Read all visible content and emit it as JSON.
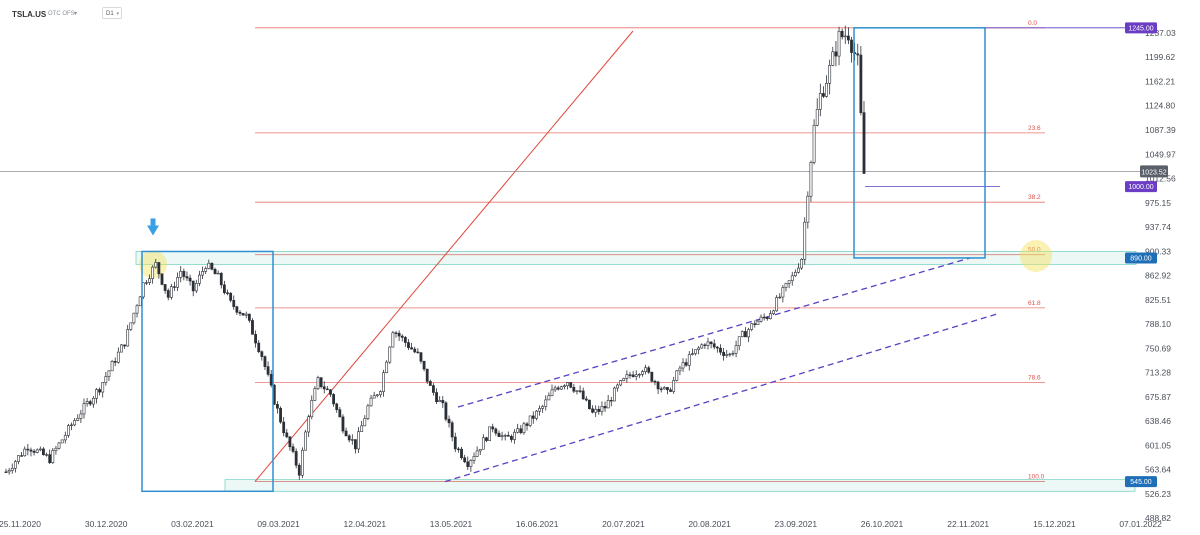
{
  "header": {
    "symbol": "TSLA.US",
    "subtitle": "OTC OFS",
    "timeframe": "D1"
  },
  "colors": {
    "fib": "#e0473e",
    "box": "#2f8fd0",
    "channel": "#5b3fc4",
    "zone": "#7fd3c4",
    "candle_up": "#ffffff",
    "candle_down": "#2b2f36",
    "price_tag": "#5a6069",
    "tag_purple": "#6a3dc4",
    "tag_blue": "#1f6fb8"
  },
  "chart_data": {
    "type": "candlestick",
    "title": "",
    "xlabel": "",
    "ylabel": "",
    "ylim": [
      488.88,
      1260
    ],
    "y_ticks": [
      "1237.03",
      "1199.62",
      "1162.21",
      "1124.80",
      "1087.39",
      "1049.97",
      "1012.56",
      "975.15",
      "937.74",
      "900.33",
      "862.92",
      "825.51",
      "788.10",
      "750.69",
      "713.28",
      "675.87",
      "638.46",
      "601.05",
      "563.64",
      "526.23",
      "488.82"
    ],
    "x_ticks": [
      "25.11.2020",
      "30.12.2020",
      "03.02.2021",
      "09.03.2021",
      "12.04.2021",
      "13.05.2021",
      "16.06.2021",
      "20.07.2021",
      "20.08.2021",
      "23.09.2021",
      "26.10.2021",
      "22.11.2021",
      "15.12.2021",
      "07.01.2022"
    ],
    "current_price": "1023.52",
    "fibonacci": [
      {
        "level": "0.0",
        "price": 1245
      },
      {
        "level": "23.6",
        "price": 1083
      },
      {
        "level": "38.2",
        "price": 976
      },
      {
        "level": "50.0",
        "price": 895
      },
      {
        "level": "61.8",
        "price": 813
      },
      {
        "level": "78.6",
        "price": 698
      },
      {
        "level": "100.0",
        "price": 545
      }
    ],
    "price_tags": [
      {
        "label": "1245.00",
        "price": 1245,
        "color": "tag_purple"
      },
      {
        "label": "1000.00",
        "price": 1000,
        "color": "tag_purple"
      },
      {
        "label": "890.00",
        "price": 890,
        "color": "tag_blue"
      },
      {
        "label": "545.00",
        "price": 545,
        "color": "tag_blue"
      }
    ],
    "waypoints": [
      [
        0,
        560
      ],
      [
        7,
        600
      ],
      [
        14,
        580
      ],
      [
        22,
        640
      ],
      [
        30,
        690
      ],
      [
        38,
        760
      ],
      [
        44,
        850
      ],
      [
        48,
        880
      ],
      [
        52,
        830
      ],
      [
        56,
        870
      ],
      [
        60,
        840
      ],
      [
        64,
        880
      ],
      [
        68,
        860
      ],
      [
        72,
        820
      ],
      [
        77,
        800
      ],
      [
        82,
        740
      ],
      [
        86,
        670
      ],
      [
        90,
        610
      ],
      [
        94,
        560
      ],
      [
        97,
        650
      ],
      [
        100,
        700
      ],
      [
        104,
        680
      ],
      [
        108,
        630
      ],
      [
        112,
        600
      ],
      [
        116,
        660
      ],
      [
        120,
        690
      ],
      [
        124,
        780
      ],
      [
        128,
        760
      ],
      [
        132,
        740
      ],
      [
        136,
        690
      ],
      [
        140,
        660
      ],
      [
        144,
        600
      ],
      [
        148,
        575
      ],
      [
        152,
        600
      ],
      [
        156,
        630
      ],
      [
        160,
        610
      ],
      [
        164,
        620
      ],
      [
        168,
        640
      ],
      [
        172,
        660
      ],
      [
        176,
        690
      ],
      [
        180,
        700
      ],
      [
        184,
        680
      ],
      [
        188,
        650
      ],
      [
        192,
        660
      ],
      [
        196,
        690
      ],
      [
        200,
        710
      ],
      [
        204,
        720
      ],
      [
        208,
        700
      ],
      [
        212,
        680
      ],
      [
        216,
        720
      ],
      [
        220,
        740
      ],
      [
        224,
        760
      ],
      [
        228,
        750
      ],
      [
        232,
        740
      ],
      [
        236,
        770
      ],
      [
        240,
        790
      ],
      [
        244,
        800
      ],
      [
        248,
        830
      ],
      [
        252,
        860
      ],
      [
        255,
        890
      ],
      [
        257,
        1000
      ],
      [
        259,
        1090
      ],
      [
        261,
        1140
      ],
      [
        264,
        1180
      ],
      [
        267,
        1230
      ],
      [
        270,
        1237
      ],
      [
        273,
        1190
      ],
      [
        275,
        1020
      ]
    ]
  }
}
